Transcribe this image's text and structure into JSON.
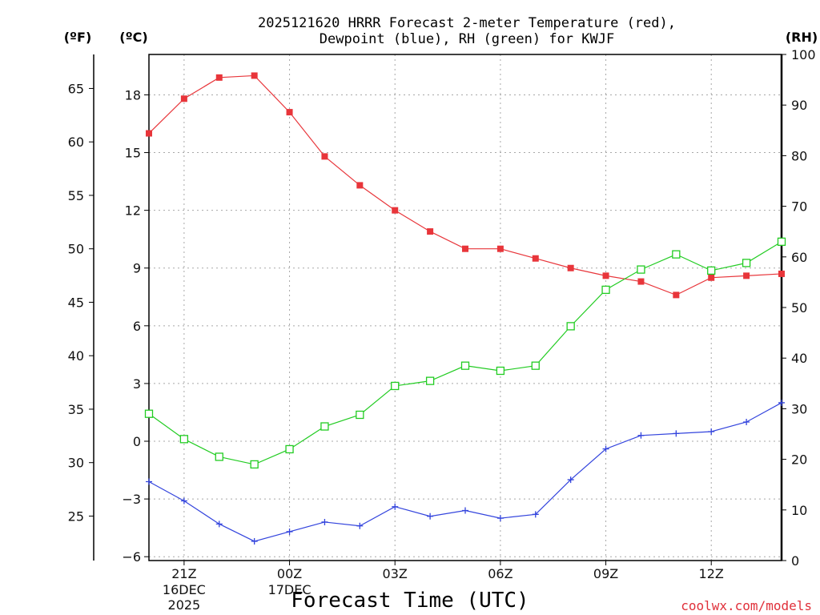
{
  "title": {
    "line1": "2025121620 HRRR Forecast 2-meter Temperature (red),",
    "line2": "Dewpoint (blue), RH (green) for KWJF"
  },
  "units": {
    "fahrenheit": "(ºF)",
    "celsius": "(ºC)",
    "rh": "(RH)"
  },
  "xlabel": "Forecast Time (UTC)",
  "credit": "coolwx.com/models",
  "colors": {
    "temperature": "#e8353a",
    "dewpoint": "#3344dd",
    "rh": "#22cc22"
  },
  "chart_data": {
    "type": "line",
    "x": [
      20,
      21,
      22,
      23,
      24,
      25,
      26,
      27,
      28,
      29,
      30,
      31,
      32,
      33,
      34,
      35,
      36,
      37,
      38
    ],
    "xlim": [
      20,
      38
    ],
    "x_ticks": [
      {
        "x": 21,
        "label": "21Z",
        "sub1": "16DEC",
        "sub2": "2025"
      },
      {
        "x": 24,
        "label": "00Z",
        "sub1": "17DEC",
        "sub2": ""
      },
      {
        "x": 27,
        "label": "03Z",
        "sub1": "",
        "sub2": ""
      },
      {
        "x": 30,
        "label": "06Z",
        "sub1": "",
        "sub2": ""
      },
      {
        "x": 33,
        "label": "09Z",
        "sub1": "",
        "sub2": ""
      },
      {
        "x": 36,
        "label": "12Z",
        "sub1": "",
        "sub2": ""
      }
    ],
    "celsius_axis": {
      "ylim": [
        -6.2,
        20.1
      ],
      "ticks": [
        -6,
        -3,
        0,
        3,
        6,
        9,
        12,
        15,
        18
      ]
    },
    "fahrenheit_axis": {
      "ticks": [
        25,
        30,
        35,
        40,
        45,
        50,
        55,
        60,
        65
      ]
    },
    "rh_axis": {
      "ylim": [
        0,
        100
      ],
      "ticks": [
        0,
        10,
        20,
        30,
        40,
        50,
        60,
        70,
        80,
        90,
        100
      ]
    },
    "series": [
      {
        "name": "Temperature",
        "axis": "celsius",
        "marker": "filled-square",
        "values": [
          16.0,
          17.8,
          18.9,
          19.0,
          17.1,
          14.8,
          13.3,
          12.0,
          10.9,
          10.0,
          10.0,
          9.5,
          9.0,
          8.6,
          8.3,
          7.6,
          8.5,
          8.6,
          8.7
        ]
      },
      {
        "name": "Dewpoint",
        "axis": "celsius",
        "marker": "plus",
        "values": [
          -2.1,
          -3.1,
          -4.3,
          -5.2,
          -4.7,
          -4.2,
          -4.4,
          -3.4,
          -3.9,
          -3.6,
          -4.0,
          -3.8,
          -2.0,
          -0.4,
          0.3,
          0.4,
          0.5,
          1.0,
          2.0
        ]
      },
      {
        "name": "RH",
        "axis": "rh",
        "marker": "open-square",
        "values": [
          29,
          24,
          20.5,
          19,
          22,
          26.5,
          28.8,
          34.5,
          35.5,
          38.5,
          37.5,
          38.5,
          46.3,
          53.5,
          57.5,
          60.5,
          57.3,
          58.8,
          63
        ]
      }
    ]
  }
}
